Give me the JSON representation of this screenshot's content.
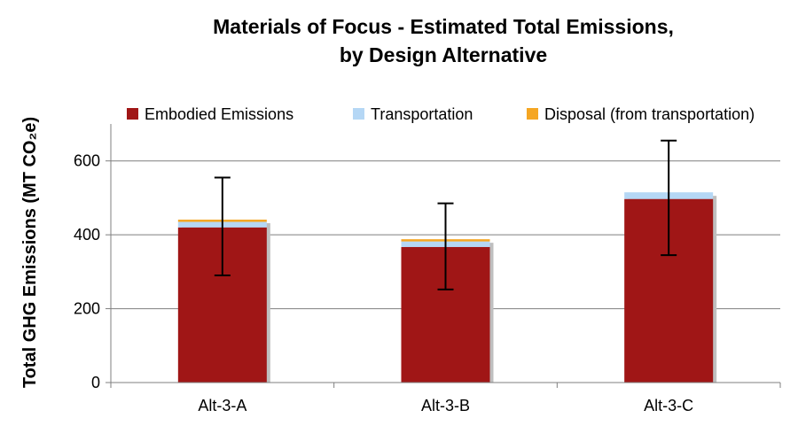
{
  "chart_data": {
    "type": "bar",
    "stacked": true,
    "title_line1": "Materials of Focus - Estimated Total Emissions,",
    "title_line2": "by Design Alternative",
    "ylabel": "Total GHG Emissions (MT CO₂e)",
    "xlabel": "",
    "ylim": [
      0,
      700
    ],
    "yticks": [
      "0",
      "200",
      "400",
      "600"
    ],
    "grid": true,
    "legend_position": "top",
    "categories": [
      "Alt-3-A",
      "Alt-3-B",
      "Alt-3-C"
    ],
    "series": [
      {
        "name": "Embodied Emissions",
        "color": "#a01616",
        "values": [
          420,
          367,
          497
        ]
      },
      {
        "name": "Transportation",
        "color": "#b5d7f5",
        "values": [
          15,
          15,
          18
        ]
      },
      {
        "name": "Disposal (from transportation)",
        "color": "#f5a623",
        "values": [
          6,
          6,
          0
        ]
      }
    ],
    "error_bars": {
      "low": [
        290,
        252,
        345
      ],
      "high": [
        555,
        485,
        655
      ]
    }
  }
}
